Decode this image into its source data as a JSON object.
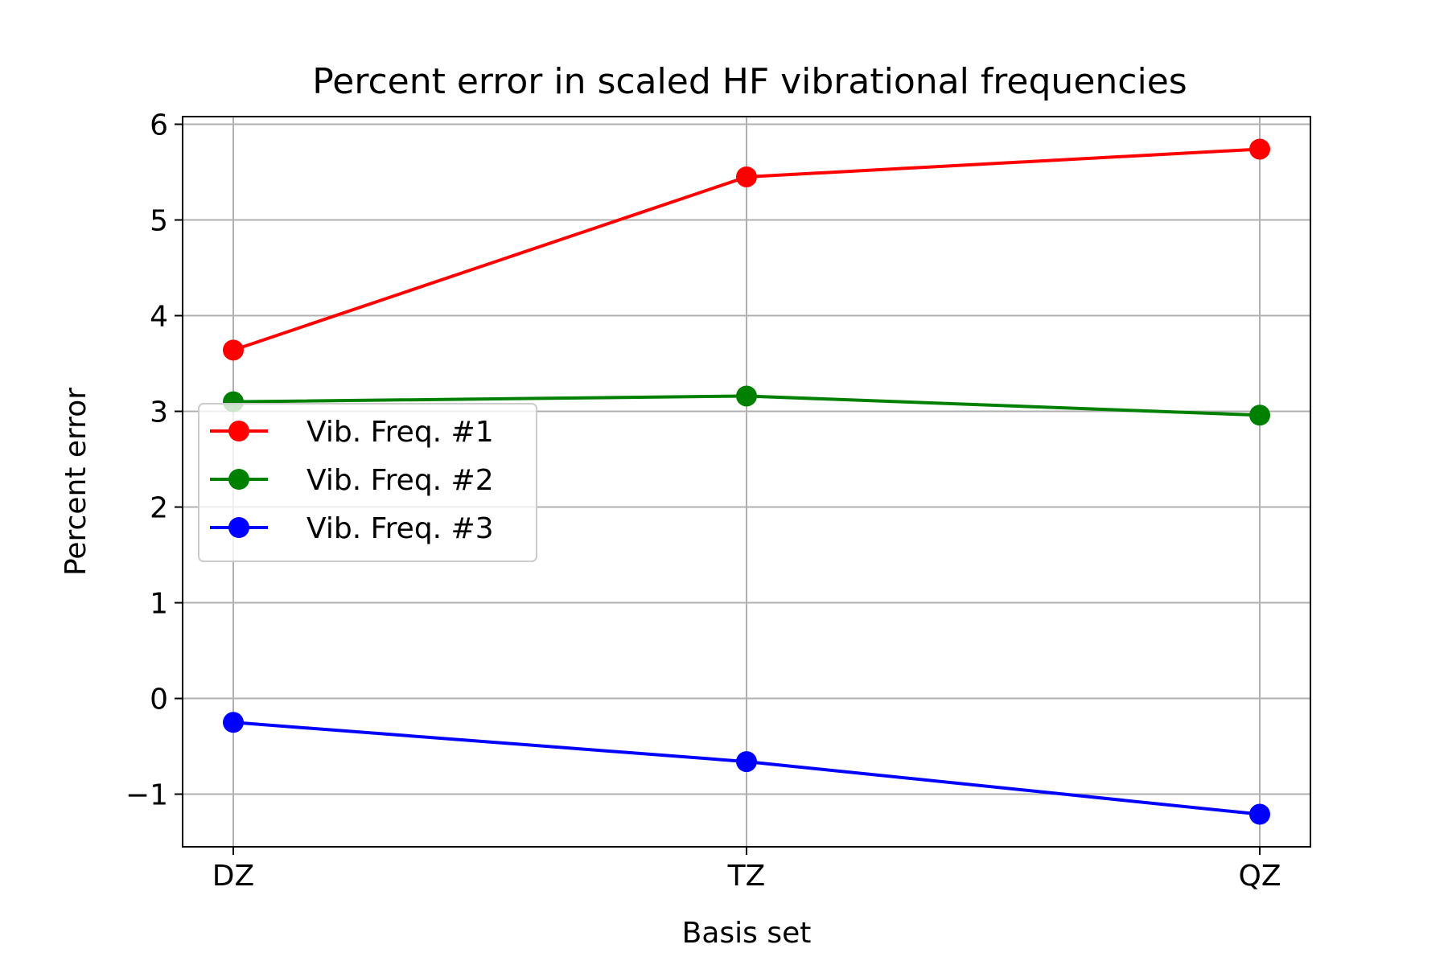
{
  "chart_data": {
    "type": "line",
    "title": "Percent error in scaled HF vibrational frequencies",
    "xlabel": "Basis set",
    "ylabel": "Percent error",
    "categories": [
      "DZ",
      "TZ",
      "QZ"
    ],
    "ylim": [
      -1.55,
      6.08
    ],
    "yticks": [
      -1,
      0,
      1,
      2,
      3,
      4,
      5,
      6
    ],
    "ytick_labels": [
      "−1",
      "0",
      "1",
      "2",
      "3",
      "4",
      "5",
      "6"
    ],
    "grid": true,
    "legend_position": "center-left",
    "series": [
      {
        "name": "Vib. Freq. #1",
        "color": "#ff0000",
        "values": [
          3.64,
          5.45,
          5.74
        ]
      },
      {
        "name": "Vib. Freq. #2",
        "color": "#008000",
        "values": [
          3.1,
          3.16,
          2.96
        ]
      },
      {
        "name": "Vib. Freq. #3",
        "color": "#0000ff",
        "values": [
          -0.25,
          -0.66,
          -1.21
        ]
      }
    ]
  }
}
